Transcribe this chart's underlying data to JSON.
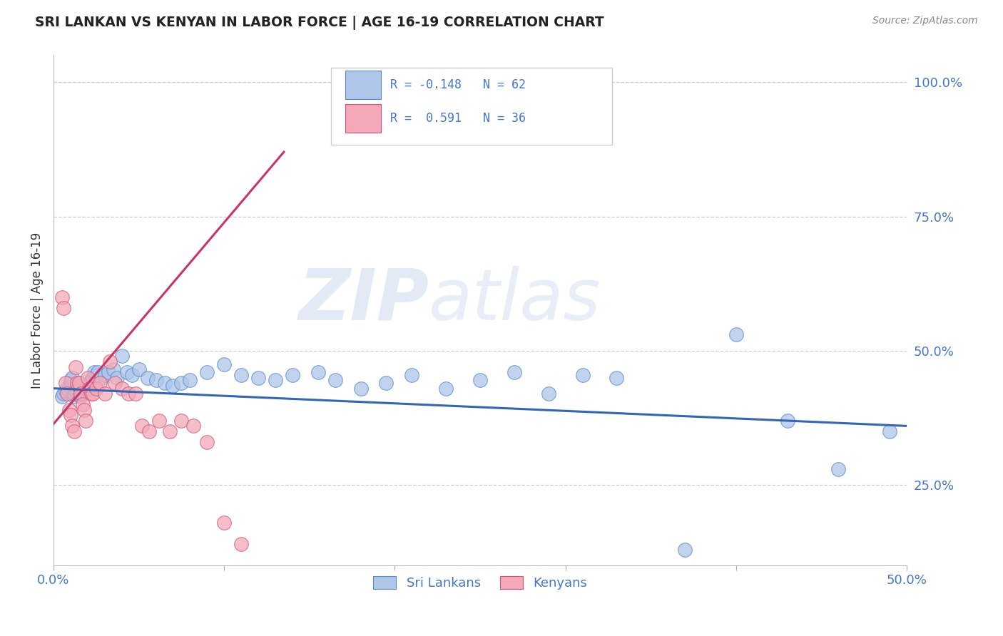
{
  "title": "SRI LANKAN VS KENYAN IN LABOR FORCE | AGE 16-19 CORRELATION CHART",
  "source": "Source: ZipAtlas.com",
  "ylabel": "In Labor Force | Age 16-19",
  "xlim": [
    0.0,
    0.5
  ],
  "ylim": [
    0.1,
    1.05
  ],
  "xticks": [
    0.0,
    0.1,
    0.2,
    0.3,
    0.4,
    0.5
  ],
  "xticklabels": [
    "0.0%",
    "",
    "",
    "",
    "",
    "50.0%"
  ],
  "yticks_right": [
    0.25,
    0.5,
    0.75,
    1.0
  ],
  "ytick_right_labels": [
    "25.0%",
    "50.0%",
    "75.0%",
    "100.0%"
  ],
  "blue_R": -0.148,
  "blue_N": 62,
  "pink_R": 0.591,
  "pink_N": 36,
  "blue_color": "#aec6e8",
  "pink_color": "#f4a8b8",
  "blue_edge_color": "#5588cc",
  "pink_edge_color": "#cc5577",
  "blue_line_color": "#3366bb",
  "pink_line_color": "#cc3366",
  "background_color": "#ffffff",
  "grid_color": "#cccccc",
  "watermark_zip": "ZIP",
  "watermark_atlas": "atlas",
  "title_color": "#222222",
  "source_color": "#888888",
  "axis_tick_color": "#4477cc",
  "ylabel_color": "#333333",
  "legend_text_color": "#333333",
  "legend_rn_color": "#4477cc",
  "blue_scatter_x": [
    0.005,
    0.006,
    0.007,
    0.008,
    0.009,
    0.01,
    0.01,
    0.011,
    0.012,
    0.012,
    0.013,
    0.014,
    0.015,
    0.015,
    0.016,
    0.017,
    0.018,
    0.019,
    0.02,
    0.021,
    0.022,
    0.023,
    0.024,
    0.025,
    0.026,
    0.028,
    0.03,
    0.032,
    0.035,
    0.037,
    0.04,
    0.043,
    0.046,
    0.05,
    0.055,
    0.06,
    0.065,
    0.07,
    0.075,
    0.08,
    0.09,
    0.1,
    0.11,
    0.12,
    0.13,
    0.14,
    0.155,
    0.165,
    0.18,
    0.195,
    0.21,
    0.23,
    0.25,
    0.27,
    0.29,
    0.31,
    0.33,
    0.37,
    0.4,
    0.43,
    0.46,
    0.49
  ],
  "blue_scatter_y": [
    0.415,
    0.42,
    0.425,
    0.43,
    0.435,
    0.44,
    0.445,
    0.45,
    0.415,
    0.42,
    0.425,
    0.43,
    0.435,
    0.44,
    0.415,
    0.42,
    0.425,
    0.43,
    0.435,
    0.44,
    0.445,
    0.45,
    0.46,
    0.455,
    0.46,
    0.45,
    0.455,
    0.46,
    0.465,
    0.45,
    0.49,
    0.46,
    0.455,
    0.465,
    0.45,
    0.445,
    0.44,
    0.435,
    0.44,
    0.445,
    0.46,
    0.475,
    0.455,
    0.45,
    0.445,
    0.455,
    0.46,
    0.445,
    0.43,
    0.44,
    0.455,
    0.43,
    0.445,
    0.46,
    0.42,
    0.455,
    0.45,
    0.13,
    0.53,
    0.37,
    0.28,
    0.35
  ],
  "pink_scatter_x": [
    0.005,
    0.006,
    0.007,
    0.008,
    0.009,
    0.01,
    0.011,
    0.012,
    0.013,
    0.014,
    0.015,
    0.016,
    0.017,
    0.018,
    0.019,
    0.02,
    0.021,
    0.022,
    0.023,
    0.025,
    0.027,
    0.03,
    0.033,
    0.036,
    0.04,
    0.044,
    0.048,
    0.052,
    0.056,
    0.062,
    0.068,
    0.075,
    0.082,
    0.09,
    0.1,
    0.11
  ],
  "pink_scatter_y": [
    0.6,
    0.58,
    0.44,
    0.42,
    0.39,
    0.38,
    0.36,
    0.35,
    0.47,
    0.44,
    0.44,
    0.42,
    0.4,
    0.39,
    0.37,
    0.45,
    0.43,
    0.42,
    0.42,
    0.43,
    0.44,
    0.42,
    0.48,
    0.44,
    0.43,
    0.42,
    0.42,
    0.36,
    0.35,
    0.37,
    0.35,
    0.37,
    0.36,
    0.33,
    0.18,
    0.14
  ],
  "blue_line_x": [
    0.0,
    0.5
  ],
  "blue_line_y": [
    0.43,
    0.36
  ],
  "pink_line_x": [
    -0.005,
    0.135
  ],
  "pink_line_y": [
    0.345,
    0.87
  ]
}
